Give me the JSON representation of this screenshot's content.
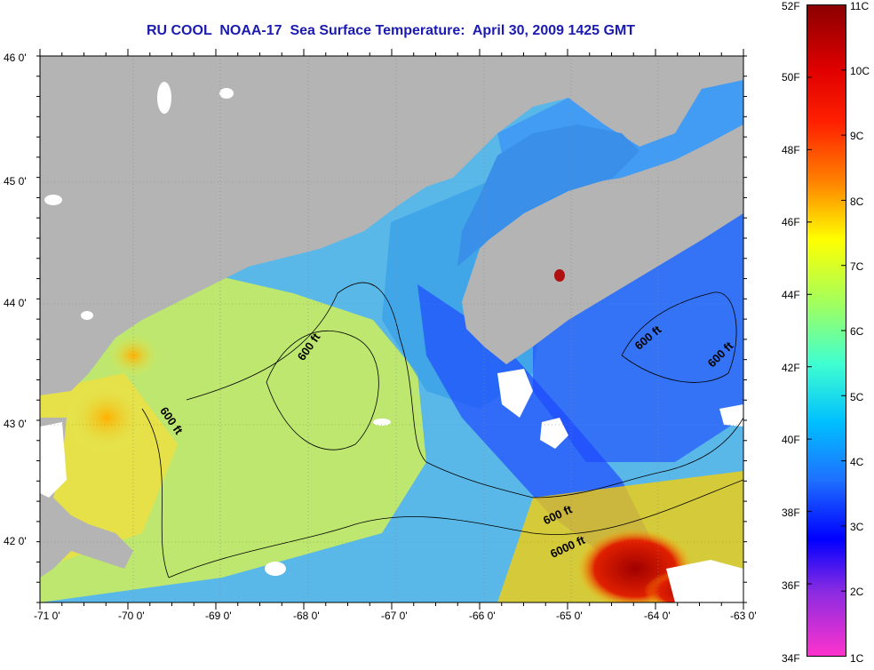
{
  "title": "RU COOL  NOAA-17  Sea Surface Temperature:  April 30, 2009 1425 GMT",
  "axes": {
    "lon_labels": [
      "-71 0'",
      "-70 0'",
      "-69 0'",
      "-68 0'",
      "-67 0'",
      "-66 0'",
      "-65 0'",
      "-64 0'",
      "-63 0'"
    ],
    "lat_labels": [
      "46 0'",
      "45 0'",
      "44 0'",
      "43 0'",
      "42 0'"
    ],
    "lon_range": [
      -71,
      -63
    ],
    "lat_range": [
      41.5,
      46
    ]
  },
  "contours": {
    "labels": [
      "600 ft",
      "600 ft",
      "600 ft",
      "600 ft",
      "600 ft",
      "6000 ft"
    ]
  },
  "colorbar": {
    "fahrenheit": [
      "52F",
      "50F",
      "48F",
      "46F",
      "44F",
      "42F",
      "40F",
      "38F",
      "36F",
      "34F"
    ],
    "celsius": [
      "11C",
      "10C",
      "9C",
      "8C",
      "7C",
      "6C",
      "5C",
      "4C",
      "3C",
      "2C",
      "1C"
    ],
    "colors": [
      "#8b0000",
      "#ff0000",
      "#ff7f00",
      "#ffff00",
      "#a0ff60",
      "#00ffff",
      "#1e90ff",
      "#0000ff",
      "#8a2be2",
      "#ff33cc"
    ]
  },
  "map_colors": {
    "land": "#b4b4b4",
    "cloud": "#ffffff",
    "gulf_water": "#3aa0e8",
    "deep_water": "#1a44ff",
    "warm_water": "#d3f05a",
    "hot_water": "#c82000"
  }
}
